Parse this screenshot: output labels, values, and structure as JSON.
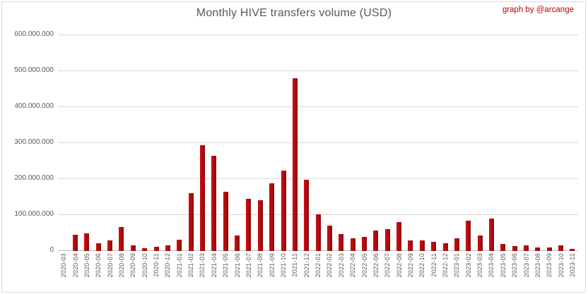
{
  "header": {
    "title": "Monthly HIVE transfers volume (USD)",
    "credit": "graph by @arcange"
  },
  "colors": {
    "bar_gradient_start": "#c90d10",
    "bar_gradient_end": "#84070a",
    "title_text": "#595959",
    "axis_label_text": "#595959",
    "credit_text": "#c00000",
    "gridline": "#d9d9d9",
    "axis_line": "#bfbfbf",
    "background": "#ffffff",
    "frame_border": "#d9d9d9"
  },
  "chart_data": {
    "type": "bar",
    "title": "Monthly HIVE transfers volume (USD)",
    "xlabel": "",
    "ylabel": "",
    "ylim": [
      0,
      600000000
    ],
    "grid": true,
    "legend": false,
    "y_ticks": [
      {
        "value": 0,
        "label": "0"
      },
      {
        "value": 100000000,
        "label": "100.000.000"
      },
      {
        "value": 200000000,
        "label": "200.000.000"
      },
      {
        "value": 300000000,
        "label": "300.000.000"
      },
      {
        "value": 400000000,
        "label": "400.000.000"
      },
      {
        "value": 500000000,
        "label": "500.000.000"
      },
      {
        "value": 600000000,
        "label": "600.000.000"
      }
    ],
    "categories": [
      "2020-03",
      "2020-04",
      "2020-05",
      "2020-06",
      "2020-07",
      "2020-08",
      "2020-09",
      "2020-10",
      "2020-11",
      "2020-12",
      "2021-01",
      "2021-02",
      "2021-03",
      "2021-04",
      "2021-05",
      "2021-06",
      "2021-07",
      "2021-08",
      "2021-09",
      "2021-10",
      "2021-11",
      "2021-12",
      "2022-01",
      "2022-02",
      "2022-03",
      "2022-04",
      "2022-05",
      "2022-06",
      "2022-07",
      "2022-08",
      "2022-09",
      "2022-10",
      "2022-11",
      "2022-12",
      "2023-01",
      "2023-02",
      "2023-03",
      "2023-04",
      "2023-05",
      "2023-06",
      "2023-07",
      "2023-08",
      "2023-09",
      "2023-10",
      "2023-11"
    ],
    "values": [
      0,
      45000000,
      50000000,
      22000000,
      30000000,
      67000000,
      16000000,
      7000000,
      11000000,
      16000000,
      31000000,
      160000000,
      295000000,
      264000000,
      164000000,
      43000000,
      146000000,
      142000000,
      188000000,
      224000000,
      481000000,
      198000000,
      102000000,
      71000000,
      48000000,
      35000000,
      40000000,
      56000000,
      61000000,
      80000000,
      30000000,
      30000000,
      26000000,
      22000000,
      36000000,
      84000000,
      44000000,
      91000000,
      20000000,
      13000000,
      15000000,
      9000000,
      10000000,
      16000000,
      5000000
    ]
  }
}
